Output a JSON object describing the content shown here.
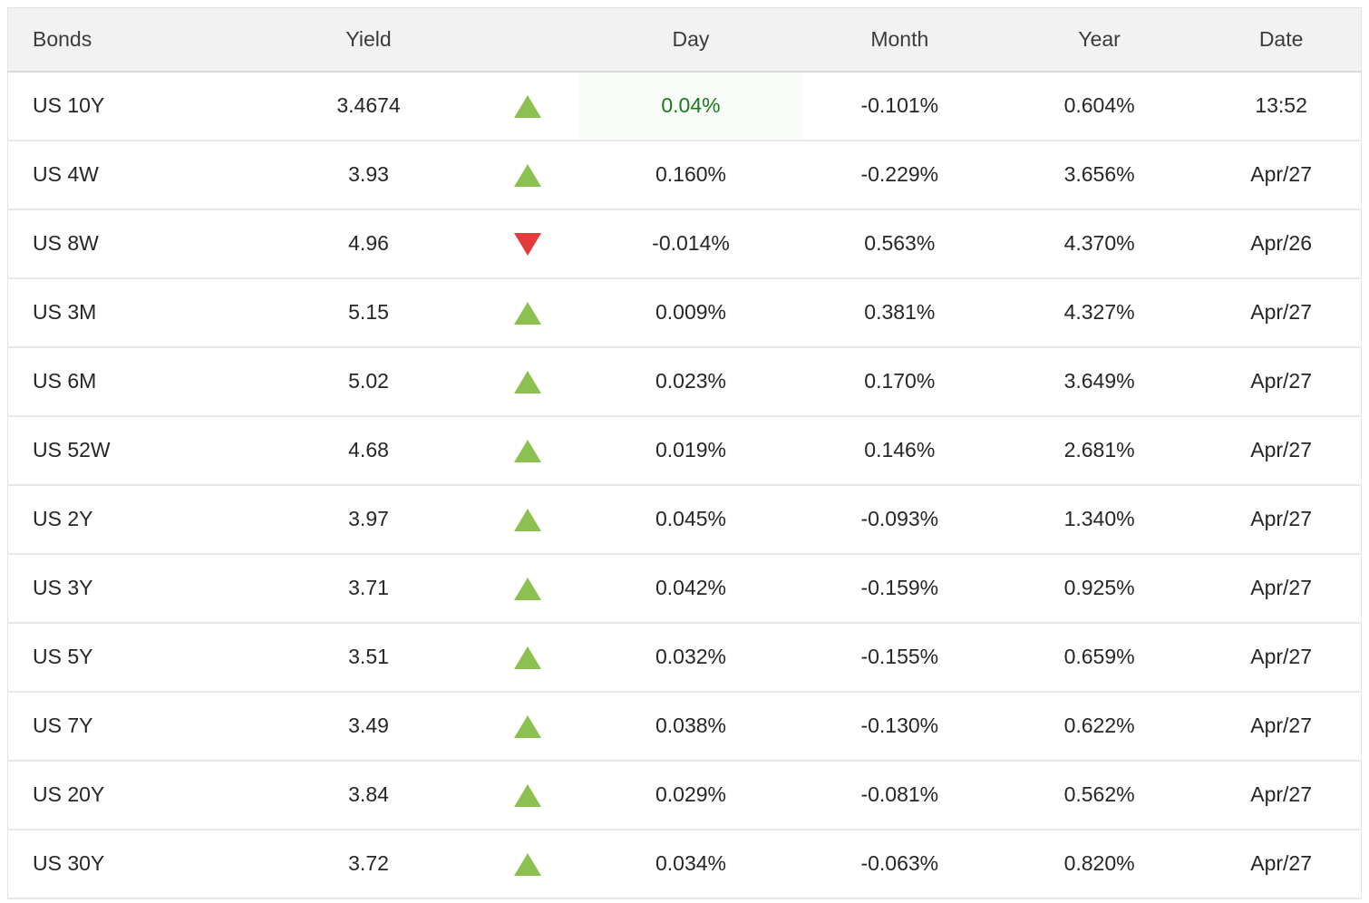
{
  "table": {
    "columns": {
      "bond": {
        "label": "Bonds"
      },
      "yield": {
        "label": "Yield"
      },
      "arrow": {
        "label": ""
      },
      "day": {
        "label": "Day"
      },
      "month": {
        "label": "Month"
      },
      "year": {
        "label": "Year"
      },
      "date": {
        "label": "Date"
      }
    },
    "rows": [
      {
        "bond": "US 10Y",
        "yield": "3.4674",
        "direction": "up",
        "day": "0.04%",
        "day_highlight": true,
        "month": "-0.101%",
        "year": "0.604%",
        "date": "13:52"
      },
      {
        "bond": "US 4W",
        "yield": "3.93",
        "direction": "up",
        "day": "0.160%",
        "day_highlight": false,
        "month": "-0.229%",
        "year": "3.656%",
        "date": "Apr/27"
      },
      {
        "bond": "US 8W",
        "yield": "4.96",
        "direction": "down",
        "day": "-0.014%",
        "day_highlight": false,
        "month": "0.563%",
        "year": "4.370%",
        "date": "Apr/26"
      },
      {
        "bond": "US 3M",
        "yield": "5.15",
        "direction": "up",
        "day": "0.009%",
        "day_highlight": false,
        "month": "0.381%",
        "year": "4.327%",
        "date": "Apr/27"
      },
      {
        "bond": "US 6M",
        "yield": "5.02",
        "direction": "up",
        "day": "0.023%",
        "day_highlight": false,
        "month": "0.170%",
        "year": "3.649%",
        "date": "Apr/27"
      },
      {
        "bond": "US 52W",
        "yield": "4.68",
        "direction": "up",
        "day": "0.019%",
        "day_highlight": false,
        "month": "0.146%",
        "year": "2.681%",
        "date": "Apr/27"
      },
      {
        "bond": "US 2Y",
        "yield": "3.97",
        "direction": "up",
        "day": "0.045%",
        "day_highlight": false,
        "month": "-0.093%",
        "year": "1.340%",
        "date": "Apr/27"
      },
      {
        "bond": "US 3Y",
        "yield": "3.71",
        "direction": "up",
        "day": "0.042%",
        "day_highlight": false,
        "month": "-0.159%",
        "year": "0.925%",
        "date": "Apr/27"
      },
      {
        "bond": "US 5Y",
        "yield": "3.51",
        "direction": "up",
        "day": "0.032%",
        "day_highlight": false,
        "month": "-0.155%",
        "year": "0.659%",
        "date": "Apr/27"
      },
      {
        "bond": "US 7Y",
        "yield": "3.49",
        "direction": "up",
        "day": "0.038%",
        "day_highlight": false,
        "month": "-0.130%",
        "year": "0.622%",
        "date": "Apr/27"
      },
      {
        "bond": "US 20Y",
        "yield": "3.84",
        "direction": "up",
        "day": "0.029%",
        "day_highlight": false,
        "month": "-0.081%",
        "year": "0.562%",
        "date": "Apr/27"
      },
      {
        "bond": "US 30Y",
        "yield": "3.72",
        "direction": "up",
        "day": "0.034%",
        "day_highlight": false,
        "month": "-0.063%",
        "year": "0.820%",
        "date": "Apr/27"
      }
    ]
  },
  "colors": {
    "up_triangle": "#8cc152",
    "down_triangle": "#e23b3b",
    "day_up_text": "#1a7a1e",
    "header_bg": "#f2f2f2",
    "row_divider": "#e7e7e7",
    "body_text": "#262626"
  },
  "icons": {
    "up": "up-triangle-icon",
    "down": "down-triangle-icon"
  }
}
